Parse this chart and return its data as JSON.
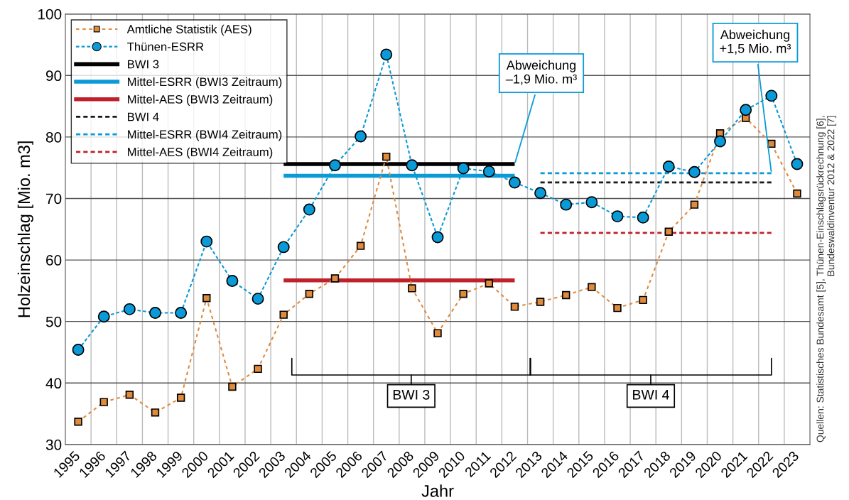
{
  "chart_data": {
    "type": "line",
    "xlabel": "Jahr",
    "ylabel": "Holzeinschlag [Mio. m3]",
    "categories": [
      "1995",
      "1996",
      "1997",
      "1998",
      "1999",
      "2000",
      "2001",
      "2002",
      "2003",
      "2004",
      "2005",
      "2006",
      "2007",
      "2008",
      "2009",
      "2010",
      "2011",
      "2012",
      "2013",
      "2014",
      "2015",
      "2016",
      "2017",
      "2018",
      "2019",
      "2020",
      "2021",
      "2022",
      "2023"
    ],
    "ylim": [
      30,
      100
    ],
    "yticks": [
      30,
      40,
      50,
      60,
      70,
      80,
      90,
      100
    ],
    "grid": true,
    "legend": "top left",
    "series": [
      {
        "name": "Amtliche Statistik (AES)",
        "color": "#e08a3c",
        "marker": "square",
        "line_style": "dotted",
        "values": [
          33.7,
          36.9,
          38.1,
          35.2,
          37.6,
          53.8,
          39.4,
          42.3,
          51.1,
          54.5,
          57.0,
          62.3,
          76.8,
          55.4,
          48.1,
          54.5,
          56.2,
          52.4,
          53.2,
          54.3,
          55.6,
          52.2,
          53.5,
          64.6,
          69.0,
          80.6,
          83.1,
          78.9,
          70.8
        ]
      },
      {
        "name": "Thünen-ESRR",
        "color": "#0a9ad7",
        "marker": "circle",
        "line_style": "dashed",
        "values": [
          45.4,
          50.8,
          52.0,
          51.4,
          51.4,
          63.0,
          56.6,
          53.7,
          62.1,
          68.2,
          75.4,
          80.1,
          93.4,
          75.4,
          63.7,
          74.9,
          74.4,
          72.6,
          70.9,
          69.0,
          69.4,
          67.1,
          66.9,
          75.2,
          74.3,
          79.3,
          84.4,
          86.7,
          75.6
        ]
      },
      {
        "name": "BWI 3",
        "color": "#000000",
        "marker": "none",
        "line_style": "solid",
        "values": [
          null,
          null,
          null,
          null,
          null,
          null,
          null,
          null,
          75.6,
          75.6,
          75.6,
          75.6,
          75.6,
          75.6,
          75.6,
          75.6,
          75.6,
          75.6,
          null,
          null,
          null,
          null,
          null,
          null,
          null,
          null,
          null,
          null,
          null
        ]
      },
      {
        "name": "Mittel-ESRR (BWI3 Zeitraum)",
        "color": "#0a9ad7",
        "marker": "none",
        "line_style": "solid",
        "values": [
          null,
          null,
          null,
          null,
          null,
          null,
          null,
          null,
          73.7,
          73.7,
          73.7,
          73.7,
          73.7,
          73.7,
          73.7,
          73.7,
          73.7,
          73.7,
          null,
          null,
          null,
          null,
          null,
          null,
          null,
          null,
          null,
          null,
          null
        ]
      },
      {
        "name": "Mittel-AES (BWI3 Zeitraum)",
        "color": "#c0202a",
        "marker": "none",
        "line_style": "solid",
        "values": [
          null,
          null,
          null,
          null,
          null,
          null,
          null,
          null,
          56.7,
          56.7,
          56.7,
          56.7,
          56.7,
          56.7,
          56.7,
          56.7,
          56.7,
          56.7,
          null,
          null,
          null,
          null,
          null,
          null,
          null,
          null,
          null,
          null,
          null
        ]
      },
      {
        "name": "BWI 4",
        "color": "#1a1a1a",
        "marker": "none",
        "line_style": "dashed",
        "values": [
          null,
          null,
          null,
          null,
          null,
          null,
          null,
          null,
          null,
          null,
          null,
          null,
          null,
          null,
          null,
          null,
          null,
          null,
          72.6,
          72.6,
          72.6,
          72.6,
          72.6,
          72.6,
          72.6,
          72.6,
          72.6,
          72.6,
          null
        ]
      },
      {
        "name": "Mittel-ESRR (BWI4 Zeitraum)",
        "color": "#0a9ad7",
        "marker": "none",
        "line_style": "dashed",
        "values": [
          null,
          null,
          null,
          null,
          null,
          null,
          null,
          null,
          null,
          null,
          null,
          null,
          null,
          null,
          null,
          null,
          null,
          null,
          74.1,
          74.1,
          74.1,
          74.1,
          74.1,
          74.1,
          74.1,
          74.1,
          74.1,
          74.1,
          null
        ]
      },
      {
        "name": "Mittel-AES (BWI4 Zeitraum)",
        "color": "#c0202a",
        "marker": "none",
        "line_style": "dashed",
        "values": [
          null,
          null,
          null,
          null,
          null,
          null,
          null,
          null,
          null,
          null,
          null,
          null,
          null,
          null,
          null,
          null,
          null,
          null,
          64.4,
          64.4,
          64.4,
          64.4,
          64.4,
          64.4,
          64.4,
          64.4,
          64.4,
          64.4,
          null
        ]
      }
    ],
    "annotations": [
      {
        "text": "Abweichung\n–1,9 Mio. m³",
        "x": "2012",
        "y": 75.6
      },
      {
        "text": "Abweichung\n+1,5 Mio. m³",
        "x": "2022",
        "y": 74.1
      },
      "BWI 3",
      "BWI 4",
      "Quellen: Statistisches Bundesamt [5], Thünen-Einschlagsrückrechnung [6],\nBundeswaldinventur 2012 & 2022 [7]"
    ]
  }
}
